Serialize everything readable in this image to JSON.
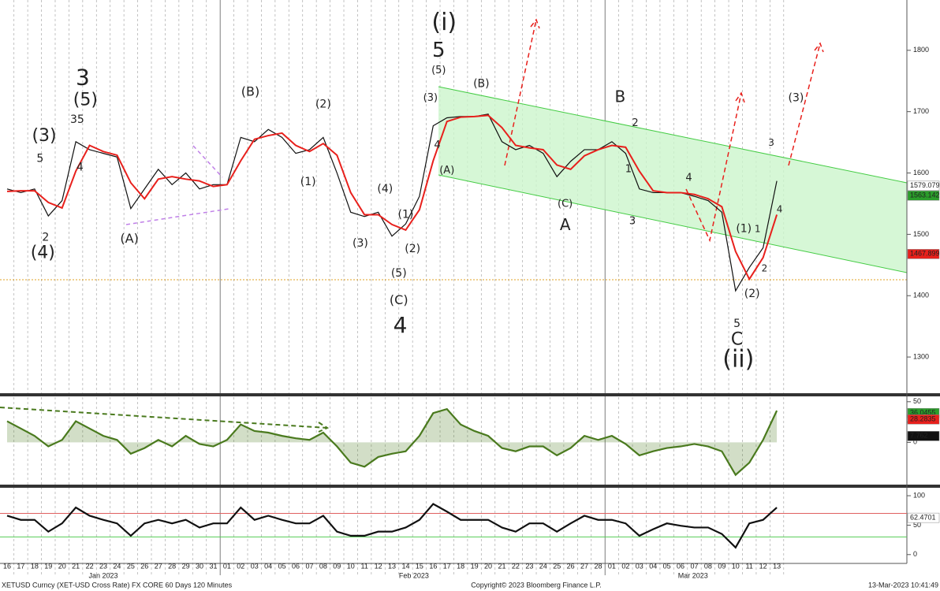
{
  "chart_data": [
    {
      "type": "line",
      "ylim": [
        1241,
        1882
      ],
      "yticks": [
        1300,
        1400,
        1500,
        1600,
        1700,
        1800
      ],
      "categories": [
        "16",
        "17",
        "18",
        "19",
        "20",
        "21",
        "22",
        "23",
        "24",
        "25",
        "26",
        "27",
        "28",
        "29",
        "30",
        "31",
        "01",
        "02",
        "03",
        "04",
        "05",
        "06",
        "07",
        "08",
        "09",
        "10",
        "11",
        "12",
        "13",
        "14",
        "15",
        "16",
        "17",
        "18",
        "19",
        "20",
        "21",
        "22",
        "23",
        "24",
        "25",
        "26",
        "27",
        "28",
        "01",
        "02",
        "03",
        "04",
        "05",
        "06",
        "07",
        "08",
        "09",
        "10",
        "11",
        "12",
        "13"
      ],
      "months": [
        "Jan 2023",
        "Feb 2023",
        "Mar 2023"
      ],
      "series": [
        {
          "name": "Price",
          "color": "#111111",
          "values": [
            1574,
            1568,
            1574,
            1530,
            1555,
            1651,
            1638,
            1632,
            1626,
            1542,
            1574,
            1606,
            1581,
            1600,
            1574,
            1581,
            1581,
            1658,
            1651,
            1671,
            1658,
            1632,
            1638,
            1658,
            1600,
            1536,
            1529,
            1536,
            1497,
            1517,
            1562,
            1677,
            1690,
            1692,
            1692,
            1696,
            1651,
            1638,
            1645,
            1632,
            1594,
            1619,
            1638,
            1638,
            1651,
            1632,
            1574,
            1568,
            1568,
            1568,
            1562,
            1555,
            1536,
            1408,
            1446,
            1478,
            1587
          ]
        },
        {
          "name": "MA",
          "color": "#e8201c",
          "values": [
            1570,
            1571,
            1571,
            1552,
            1543,
            1603,
            1645,
            1635,
            1629,
            1584,
            1558,
            1590,
            1594,
            1590,
            1587,
            1578,
            1581,
            1620,
            1655,
            1661,
            1665,
            1645,
            1635,
            1648,
            1629,
            1568,
            1532,
            1532,
            1516,
            1507,
            1540,
            1620,
            1684,
            1691,
            1692,
            1694,
            1674,
            1645,
            1641,
            1638,
            1613,
            1606,
            1628,
            1638,
            1645,
            1642,
            1603,
            1571,
            1568,
            1568,
            1565,
            1558,
            1545,
            1472,
            1427,
            1462,
            1532
          ]
        }
      ],
      "value_boxes": [
        {
          "value": 1579.079,
          "color": "#ffffff",
          "text_color": "#111111"
        },
        {
          "value": 1563.142,
          "color": "#2a9d2a",
          "text_color": "#111111"
        },
        {
          "value": 1467.899,
          "color": "#e8201c",
          "text_color": "#ffffff"
        }
      ],
      "annotations": [
        {
          "text": "(i)",
          "color": "#3d6b12"
        },
        {
          "text": "5",
          "color": "#e8001c"
        },
        {
          "text": "(5)",
          "color": "#e0405a"
        },
        {
          "text": "(3)",
          "color": "#e0405a"
        },
        {
          "text": "4",
          "color": "#e0405a"
        },
        {
          "text": "(A)",
          "color": "#e0405a"
        },
        {
          "text": "(B)",
          "color": "#e0405a"
        },
        {
          "text": "B",
          "color": "#5a8a1e"
        },
        {
          "text": "2",
          "color": "#e0405a"
        },
        {
          "text": "1",
          "color": "#e0405a"
        },
        {
          "text": "4",
          "color": "#e0405a"
        },
        {
          "text": "3",
          "color": "#e0405a"
        },
        {
          "text": "(C)",
          "color": "#e0405a"
        },
        {
          "text": "A",
          "color": "#5a8a1e"
        },
        {
          "text": "3",
          "color": "#e8001c"
        },
        {
          "text": "(5)",
          "color": "#5a8a1e"
        },
        {
          "text": "35",
          "color": "#8a5cb8"
        },
        {
          "text": "4",
          "color": "#8a5cb8"
        },
        {
          "text": "(3)",
          "color": "#5a8a1e"
        },
        {
          "text": "5",
          "color": "#8a5cb8"
        },
        {
          "text": "2",
          "color": "#8a5cb8"
        },
        {
          "text": "(4)",
          "color": "#5a8a1e"
        },
        {
          "text": "(A)",
          "color": "#8a5cb8"
        },
        {
          "text": "(B)",
          "color": "#8a5cb8"
        },
        {
          "text": "(2)",
          "color": "#e0405a"
        },
        {
          "text": "(1)",
          "color": "#e0405a"
        },
        {
          "text": "(3)",
          "color": "#e0405a"
        },
        {
          "text": "(4)",
          "color": "#e0405a"
        },
        {
          "text": "(1)",
          "color": "#e0405a"
        },
        {
          "text": "(2)",
          "color": "#e0405a"
        },
        {
          "text": "(5)",
          "color": "#e0405a"
        },
        {
          "text": "(C)",
          "color": "#8a5cb8"
        },
        {
          "text": "4",
          "color": "#e8001c"
        },
        {
          "text": "(1)",
          "color": "#e0405a"
        },
        {
          "text": "1",
          "color": "#777777"
        },
        {
          "text": "2",
          "color": "#777777"
        },
        {
          "text": "(2)",
          "color": "#e0405a"
        },
        {
          "text": "3",
          "color": "#777777"
        },
        {
          "text": "4",
          "color": "#777777"
        },
        {
          "text": "(3)",
          "color": "#e0405a"
        },
        {
          "text": "5",
          "color": "#e0405a"
        },
        {
          "text": "C",
          "color": "#5a8a1e"
        },
        {
          "text": "(ii)",
          "color": "#3d6b12"
        }
      ],
      "footer": {
        "security": "XETUSD Curncy (XET-USD Cross Rate) FX CORE 60 Days 120 Minutes",
        "copyright": "Copyright© 2023 Bloomberg Finance L.P.",
        "timestamp": "13-Mar-2023 10:41:49"
      }
    },
    {
      "type": "line",
      "ylim": [
        -52,
        56.6
      ],
      "yticks": [
        0,
        25,
        50
      ],
      "series": [
        {
          "name": "Oscillator",
          "color": "#4a7a1e",
          "values": [
            26,
            17,
            8,
            -5,
            3,
            26,
            17,
            8,
            3,
            -14,
            -7,
            3,
            -5,
            8,
            -2,
            -5,
            3,
            22,
            14,
            12,
            8,
            5,
            3,
            12,
            -5,
            -25,
            -30,
            -18,
            -14,
            -11,
            8,
            36,
            41,
            22,
            14,
            8,
            -7,
            -11,
            -5,
            -5,
            -16,
            -7,
            8,
            3,
            8,
            -2,
            -16,
            -11,
            -7,
            -5,
            -2,
            -5,
            -11,
            -40,
            -25,
            3,
            39
          ]
        }
      ],
      "value_boxes": [
        {
          "value": 36.0455,
          "color": "#2a9d2a",
          "text_color": "#111111"
        },
        {
          "value": 28.2835,
          "color": "#e8201c",
          "text_color": "#ffffff"
        },
        {
          "value": 7.762,
          "color": "#111111",
          "text_color": "#ffffff"
        }
      ]
    },
    {
      "type": "line",
      "ylim": [
        -15,
        113.5
      ],
      "yticks": [
        0,
        50,
        100
      ],
      "ref_lines": [
        {
          "value": 70,
          "color": "#e06060"
        },
        {
          "value": 30,
          "color": "#55cc55"
        }
      ],
      "series": [
        {
          "name": "RSI",
          "color": "#111111",
          "values": [
            66,
            59,
            59,
            39,
            53,
            80,
            66,
            59,
            53,
            32,
            53,
            59,
            53,
            59,
            46,
            53,
            53,
            80,
            59,
            66,
            59,
            53,
            53,
            66,
            39,
            32,
            32,
            39,
            39,
            46,
            59,
            86,
            73,
            59,
            59,
            59,
            46,
            39,
            53,
            53,
            39,
            53,
            66,
            59,
            59,
            53,
            32,
            43,
            53,
            49,
            46,
            46,
            35,
            12,
            53,
            59,
            80
          ]
        }
      ],
      "value_boxes": [
        {
          "value": 62.4701,
          "color": "#ffffff",
          "text_color": "#111111"
        }
      ]
    }
  ]
}
